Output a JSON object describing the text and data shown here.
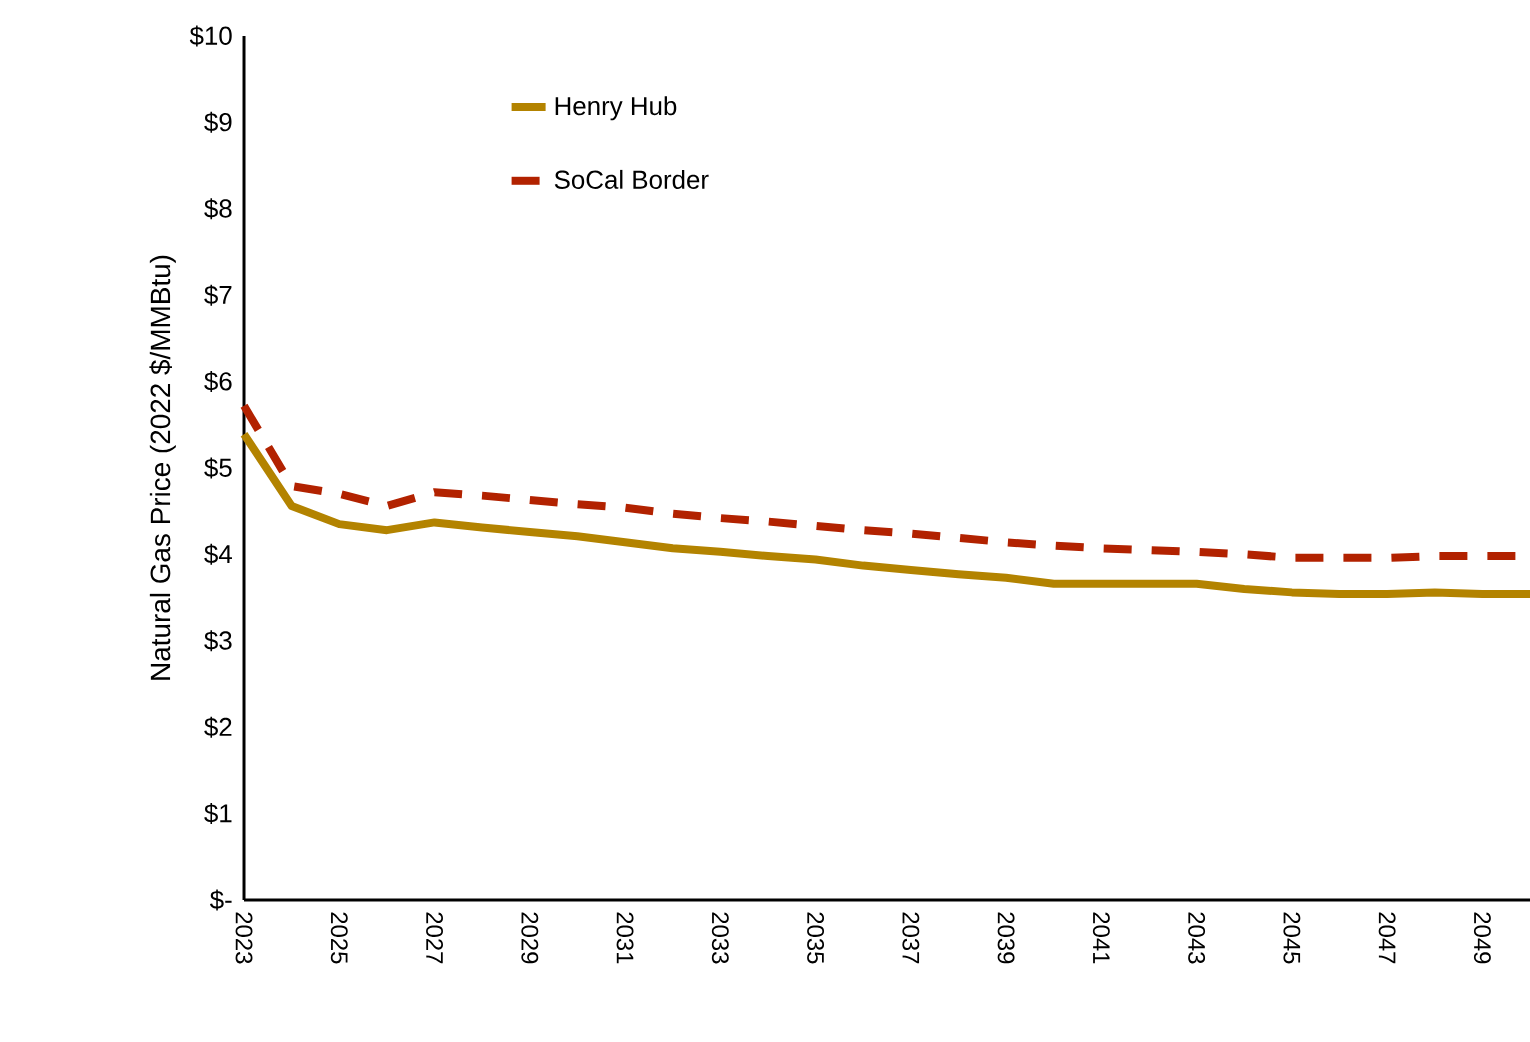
{
  "chart_data": {
    "type": "line",
    "ylabel": "Natural Gas Price (2022 $/MMBtu)",
    "categories": [
      "2023",
      null,
      "2025",
      null,
      "2027",
      null,
      "2029",
      null,
      "2031",
      null,
      "2033",
      null,
      "2035",
      null,
      "2037",
      null,
      "2039",
      null,
      "2041",
      null,
      "2043",
      null,
      "2045",
      null,
      "2047",
      null,
      "2049",
      null
    ],
    "series": [
      {
        "name": "Henry Hub",
        "color": "#b38300",
        "line_style": "solid",
        "values": [
          5.39,
          4.56,
          4.35,
          4.28,
          4.37,
          4.31,
          4.26,
          4.21,
          4.14,
          4.07,
          4.03,
          3.98,
          3.94,
          3.87,
          3.82,
          3.77,
          3.73,
          3.66,
          3.66,
          3.66,
          3.66,
          3.6,
          3.56,
          3.54,
          3.54,
          3.56,
          3.54,
          3.54
        ]
      },
      {
        "name": "SoCal Border",
        "color": "#b22200",
        "line_style": "dashed",
        "values": [
          5.72,
          4.79,
          4.7,
          4.56,
          4.72,
          4.68,
          4.63,
          4.58,
          4.54,
          4.47,
          4.42,
          4.38,
          4.33,
          4.28,
          4.24,
          4.19,
          4.14,
          4.1,
          4.07,
          4.05,
          4.03,
          4.0,
          3.96,
          3.96,
          3.96,
          3.98,
          3.98,
          3.98
        ]
      }
    ],
    "ylim": [
      0,
      10
    ],
    "yticks": [
      {
        "value": 0,
        "label": "$-"
      },
      {
        "value": 1,
        "label": "$1"
      },
      {
        "value": 2,
        "label": "$2"
      },
      {
        "value": 3,
        "label": "$3"
      },
      {
        "value": 4,
        "label": "$4"
      },
      {
        "value": 5,
        "label": "$5"
      },
      {
        "value": 6,
        "label": "$6"
      },
      {
        "value": 7,
        "label": "$7"
      },
      {
        "value": 8,
        "label": "$8"
      },
      {
        "value": 9,
        "label": "$9"
      },
      {
        "value": 10,
        "label": "$10"
      }
    ],
    "legend": "top left",
    "grid": false,
    "marker": "none"
  }
}
